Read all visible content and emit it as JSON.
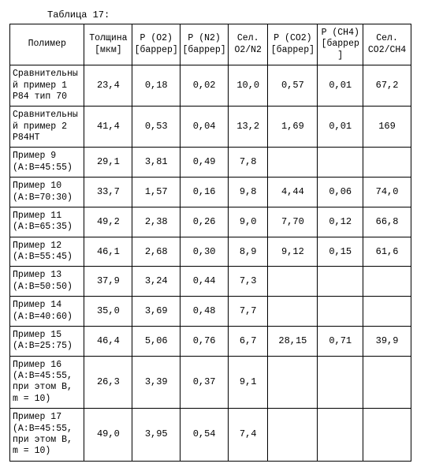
{
  "caption": "Таблица 17:",
  "columns": [
    "Полимер",
    "Толщина [мкм]",
    "Р (О2) [баррер]",
    "Р (N2) [баррер]",
    "Сел. О2/N2",
    "Р (СО2) [баррер]",
    "Р (СН4) [баррер]",
    "Сел. СО2/СН4"
  ],
  "rows": [
    [
      "Сравнительный пример 1 Р84 тип 70",
      "23,4",
      "0,18",
      "0,02",
      "10,0",
      "0,57",
      "0,01",
      "67,2"
    ],
    [
      "Сравнительный пример 2 Р84НТ",
      "41,4",
      "0,53",
      "0,04",
      "13,2",
      "1,69",
      "0,01",
      "169"
    ],
    [
      "Пример 9 (А:В=45:55)",
      "29,1",
      "3,81",
      "0,49",
      "7,8",
      "",
      "",
      ""
    ],
    [
      "Пример 10 (А:В=70:30)",
      "33,7",
      "1,57",
      "0,16",
      "9,8",
      "4,44",
      "0,06",
      "74,0"
    ],
    [
      "Пример 11 (А:В=65:35)",
      "49,2",
      "2,38",
      "0,26",
      "9,0",
      "7,70",
      "0,12",
      "66,8"
    ],
    [
      "Пример 12 (А:В=55:45)",
      "46,1",
      "2,68",
      "0,30",
      "8,9",
      "9,12",
      "0,15",
      "61,6"
    ],
    [
      "Пример 13 (А:В=50:50)",
      "37,9",
      "3,24",
      "0,44",
      "7,3",
      "",
      "",
      ""
    ],
    [
      "Пример 14 (А:В=40:60)",
      "35,0",
      "3,69",
      "0,48",
      "7,7",
      "",
      "",
      ""
    ],
    [
      "Пример 15 (А:В=25:75)",
      "46,4",
      "5,06",
      "0,76",
      "6,7",
      "28,15",
      "0,71",
      "39,9"
    ],
    [
      "Пример 16 (А:В=45:55, при этом В, m = 10)",
      "26,3",
      "3,39",
      "0,37",
      "9,1",
      "",
      "",
      ""
    ],
    [
      "Пример 17 (А:В=45:55, при этом В, m = 10)",
      "49,0",
      "3,95",
      "0,54",
      "7,4",
      "",
      "",
      ""
    ]
  ]
}
